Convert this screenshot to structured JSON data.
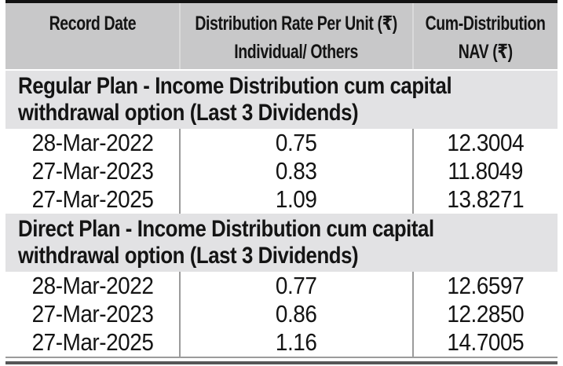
{
  "header": {
    "col1": "Record Date",
    "col2_line1": "Distribution Rate Per Unit (₹)",
    "col2_line2": "Individual/ Others",
    "col3_line1": "Cum-Distribution",
    "col3_line2": "NAV (₹)"
  },
  "sections": [
    {
      "title_line1": "Regular Plan - Income Distribution cum capital",
      "title_line2": "withdrawal option (Last 3 Dividends)",
      "rows": [
        [
          "28-Mar-2022",
          "0.75",
          "12.3004"
        ],
        [
          "27-Mar-2023",
          "0.83",
          "11.8049"
        ],
        [
          "27-Mar-2025",
          "1.09",
          "13.8271"
        ]
      ]
    },
    {
      "title_line1": "Direct Plan - Income Distribution cum capital",
      "title_line2": "withdrawal option (Last 3 Dividends)",
      "rows": [
        [
          "28-Mar-2022",
          "0.77",
          "12.6597"
        ],
        [
          "27-Mar-2023",
          "0.86",
          "12.2850"
        ],
        [
          "27-Mar-2025",
          "1.16",
          "14.7005"
        ]
      ]
    }
  ],
  "colors": {
    "header_bg": "#c8c8c9",
    "section_bg": "#e2e2e4",
    "text": "#141414",
    "grid_line": "#9b9b9b",
    "top_border": "#121212",
    "bottom_border": "#555657"
  }
}
